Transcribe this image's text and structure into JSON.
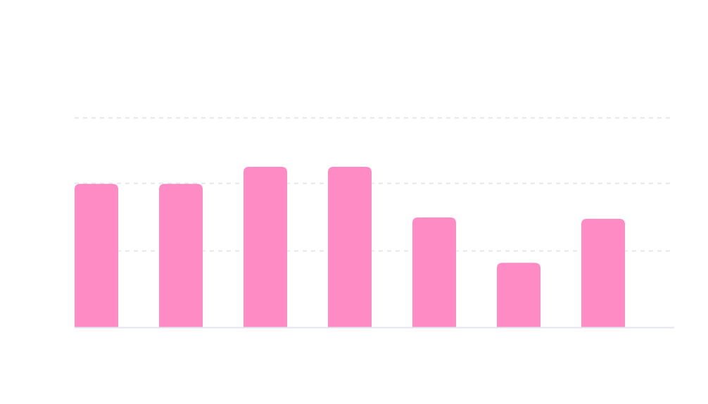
{
  "chart_data": {
    "type": "bar",
    "categories": [
      "",
      "",
      "",
      "",
      "",
      "",
      ""
    ],
    "values": [
      2.18,
      2.18,
      2.44,
      2.44,
      1.67,
      0.98,
      1.65
    ],
    "title": "",
    "xlabel": "",
    "ylabel": "",
    "ylim": [
      0,
      3.2
    ],
    "yticks": [
      1.17,
      2.19,
      3.19
    ],
    "grid": true,
    "legend": "none",
    "colors": {
      "bar": "#ff8bc5",
      "grid": "#e5e7eb",
      "axis": "#e3e4ef"
    }
  }
}
